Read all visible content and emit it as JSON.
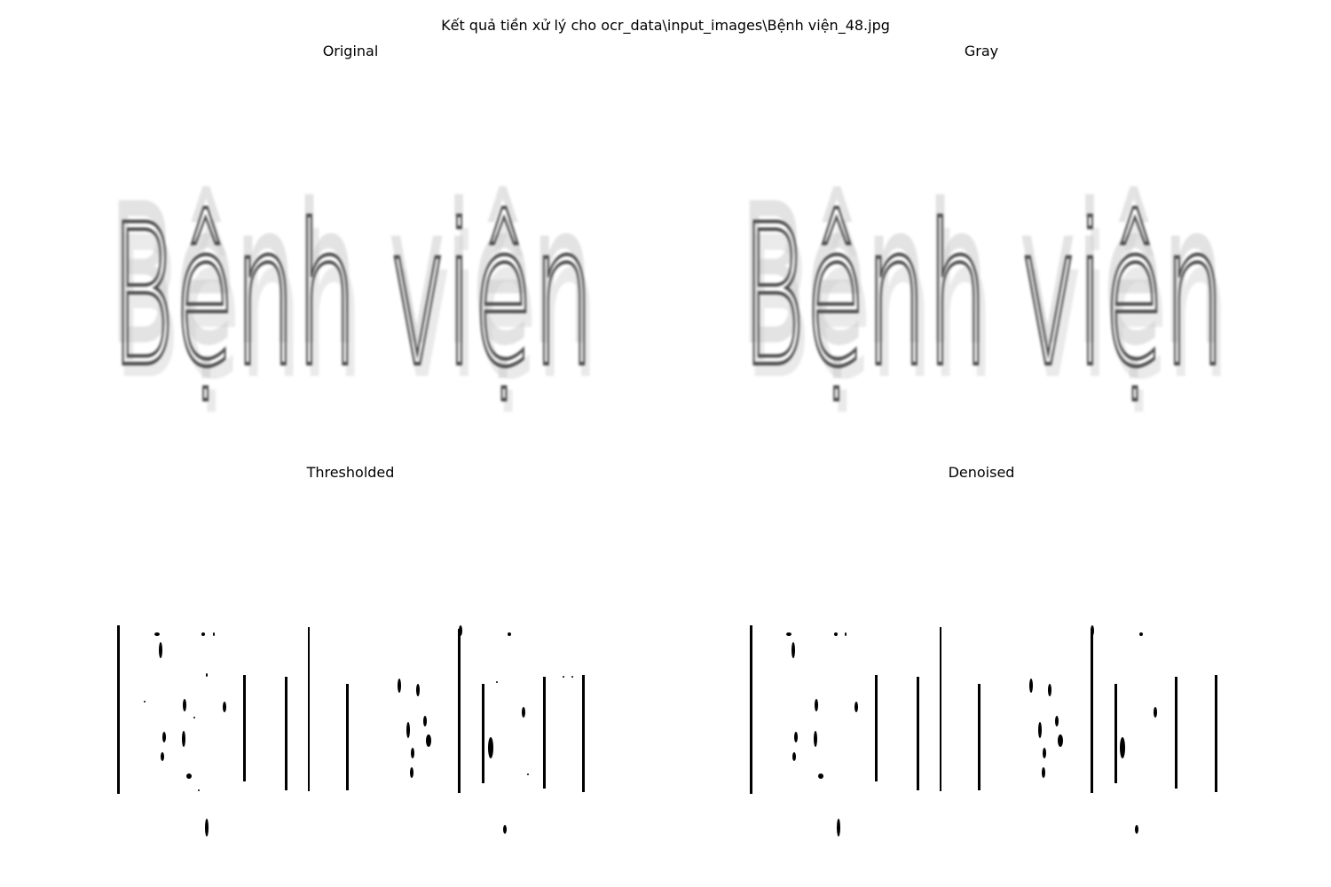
{
  "figure": {
    "title": "Kết quả tiền xử lý cho ocr_data\\input_images\\Bệnh viện_48.jpg"
  },
  "panels": [
    {
      "title": "Original",
      "style": "soft-gray",
      "text": "Bệnh viện"
    },
    {
      "title": "Gray",
      "style": "soft-gray",
      "text": "Bệnh viện"
    },
    {
      "title": "Thresholded",
      "style": "binary"
    },
    {
      "title": "Denoised",
      "style": "binary"
    }
  ],
  "colors": {
    "background": "#ffffff",
    "ink": "#000000",
    "soft_ink": "#4a4a4a",
    "ghost_ink": "#d0d0d0"
  }
}
